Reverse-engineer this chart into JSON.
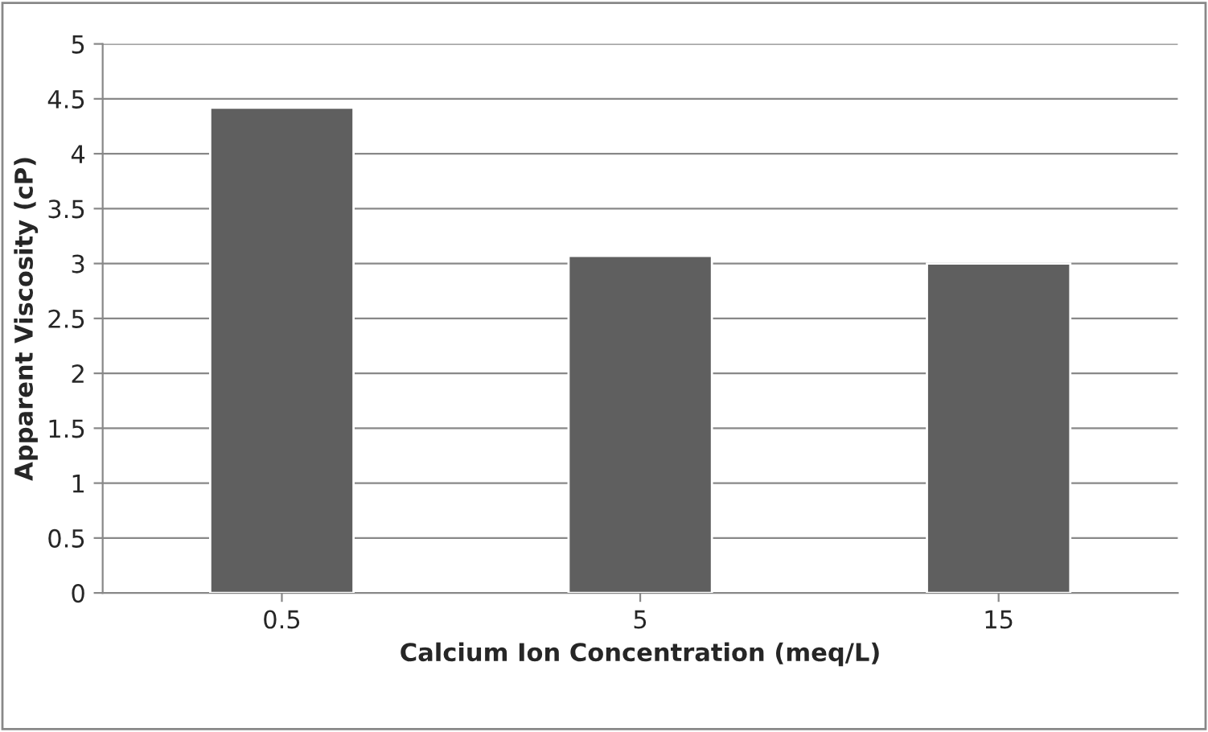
{
  "chart_data": {
    "type": "bar",
    "xlabel": "Calcium Ion Concentration (meq/L)",
    "ylabel": "Apparent Viscosity (cP)",
    "categories": [
      "0.5",
      "5",
      "15"
    ],
    "values": [
      4.42,
      3.07,
      3.0
    ],
    "color": "#5f5f5f",
    "ylim": [
      0,
      5
    ],
    "yticks": [
      0,
      0.5,
      1,
      1.5,
      2,
      2.5,
      3,
      3.5,
      4,
      4.5,
      5
    ],
    "grid": "y"
  }
}
